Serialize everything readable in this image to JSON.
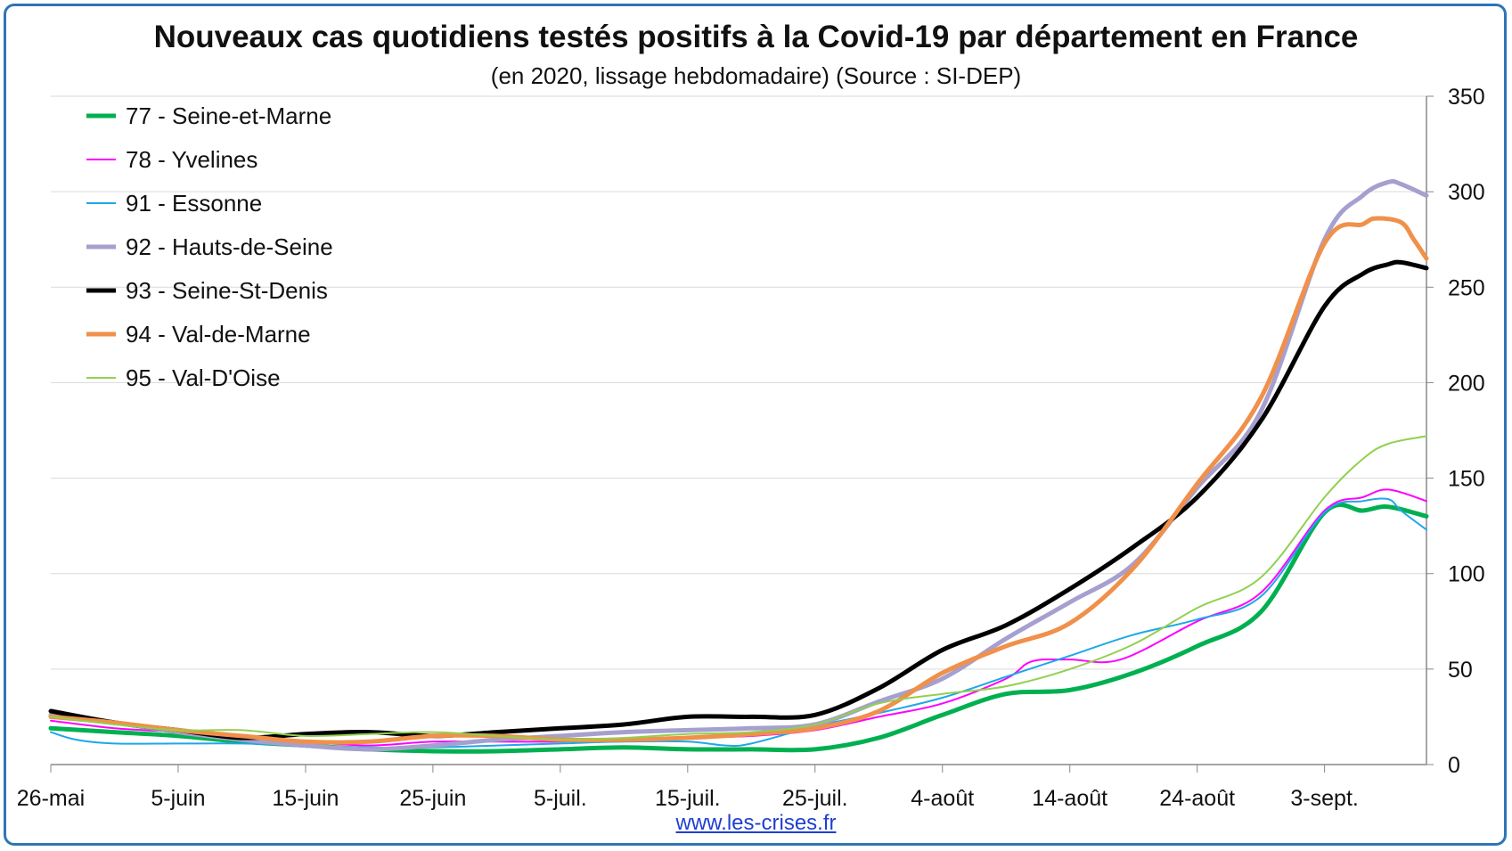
{
  "chart_data": {
    "type": "line",
    "title": "Nouveaux cas quotidiens testés positifs à la Covid-19 par département en France",
    "subtitle": "(en 2020, lissage hebdomadaire) (Source : SI-DEP)",
    "source_link": "www.les-crises.fr",
    "x_tick_labels": [
      "26-mai",
      "5-juin",
      "15-juin",
      "25-juin",
      "5-juil.",
      "15-juil.",
      "25-juil.",
      "4-août",
      "14-août",
      "24-août",
      "3-sept."
    ],
    "x_tick_days": [
      0,
      10,
      20,
      30,
      40,
      50,
      60,
      70,
      80,
      90,
      100
    ],
    "xlim": [
      0,
      108
    ],
    "ylim": [
      0,
      350
    ],
    "y_ticks": [
      0,
      50,
      100,
      150,
      200,
      250,
      300,
      350
    ],
    "y_axis_side": "right",
    "grid": true,
    "legend_position": "top-left",
    "series": [
      {
        "name": "77 - Seine-et-Marne",
        "color": "#00b050",
        "width": 5,
        "x": [
          0,
          5,
          10,
          15,
          20,
          25,
          30,
          35,
          40,
          45,
          50,
          55,
          60,
          65,
          70,
          75,
          80,
          85,
          90,
          95,
          100,
          103,
          105,
          108
        ],
        "y": [
          19,
          17,
          15,
          12,
          10,
          8,
          7,
          7,
          8,
          9,
          8,
          8,
          8,
          14,
          26,
          37,
          39,
          48,
          62,
          80,
          132,
          133,
          135,
          130
        ]
      },
      {
        "name": "78 - Yvelines",
        "color": "#ff00ff",
        "width": 2,
        "x": [
          0,
          5,
          10,
          15,
          20,
          25,
          30,
          35,
          40,
          45,
          50,
          55,
          60,
          65,
          70,
          75,
          77,
          80,
          84,
          90,
          95,
          100,
          103,
          105,
          108
        ],
        "y": [
          23,
          19,
          17,
          14,
          12,
          10,
          12,
          12,
          12,
          13,
          14,
          15,
          18,
          25,
          32,
          45,
          54,
          55,
          55,
          75,
          90,
          133,
          140,
          144,
          138
        ]
      },
      {
        "name": "91 - Essonne",
        "color": "#1ea7e8",
        "width": 2,
        "x": [
          0,
          2,
          5,
          10,
          15,
          20,
          25,
          30,
          35,
          40,
          45,
          50,
          53,
          55,
          60,
          65,
          70,
          75,
          80,
          85,
          90,
          95,
          100,
          103,
          105,
          106,
          108
        ],
        "y": [
          17,
          13,
          11,
          11,
          11,
          10,
          9,
          9,
          10,
          11,
          12,
          12,
          10,
          11,
          20,
          27,
          35,
          46,
          57,
          68,
          76,
          88,
          132,
          138,
          139,
          133,
          123
        ]
      },
      {
        "name": "92 - Hauts-de-Seine",
        "color": "#a5a0cf",
        "width": 5,
        "x": [
          0,
          5,
          10,
          15,
          20,
          25,
          30,
          35,
          40,
          45,
          50,
          55,
          60,
          65,
          70,
          75,
          80,
          85,
          90,
          95,
          100,
          103,
          105,
          106,
          108
        ],
        "y": [
          26,
          22,
          17,
          13,
          10,
          8,
          10,
          13,
          15,
          17,
          18,
          19,
          21,
          33,
          45,
          66,
          85,
          105,
          145,
          185,
          275,
          298,
          305,
          304,
          298
        ]
      },
      {
        "name": "93 - Seine-St-Denis",
        "color": "#000000",
        "width": 5,
        "x": [
          0,
          5,
          10,
          15,
          20,
          25,
          30,
          35,
          40,
          45,
          50,
          55,
          60,
          65,
          70,
          75,
          80,
          85,
          90,
          95,
          100,
          103,
          105,
          106,
          108
        ],
        "y": [
          28,
          22,
          18,
          14,
          16,
          17,
          15,
          17,
          19,
          21,
          25,
          25,
          26,
          40,
          60,
          73,
          92,
          114,
          140,
          180,
          240,
          257,
          262,
          263,
          260
        ]
      },
      {
        "name": "94 - Val-de-Marne",
        "color": "#f0904a",
        "width": 5,
        "x": [
          0,
          5,
          10,
          15,
          20,
          25,
          30,
          35,
          40,
          45,
          50,
          55,
          60,
          65,
          70,
          75,
          80,
          85,
          90,
          95,
          100,
          103,
          104,
          106,
          107,
          108
        ],
        "y": [
          25,
          22,
          18,
          15,
          12,
          12,
          15,
          15,
          13,
          13,
          14,
          16,
          19,
          28,
          48,
          62,
          74,
          103,
          147,
          192,
          273,
          283,
          286,
          284,
          275,
          265
        ]
      },
      {
        "name": "95 - Val-D'Oise",
        "color": "#92d050",
        "width": 2,
        "x": [
          0,
          5,
          10,
          15,
          20,
          25,
          30,
          35,
          40,
          45,
          50,
          55,
          60,
          65,
          70,
          75,
          80,
          85,
          90,
          95,
          100,
          103,
          105,
          108
        ],
        "y": [
          25,
          21,
          18,
          18,
          15,
          16,
          17,
          15,
          13,
          14,
          16,
          17,
          21,
          32,
          37,
          41,
          50,
          63,
          82,
          98,
          140,
          160,
          168,
          172
        ]
      }
    ]
  }
}
